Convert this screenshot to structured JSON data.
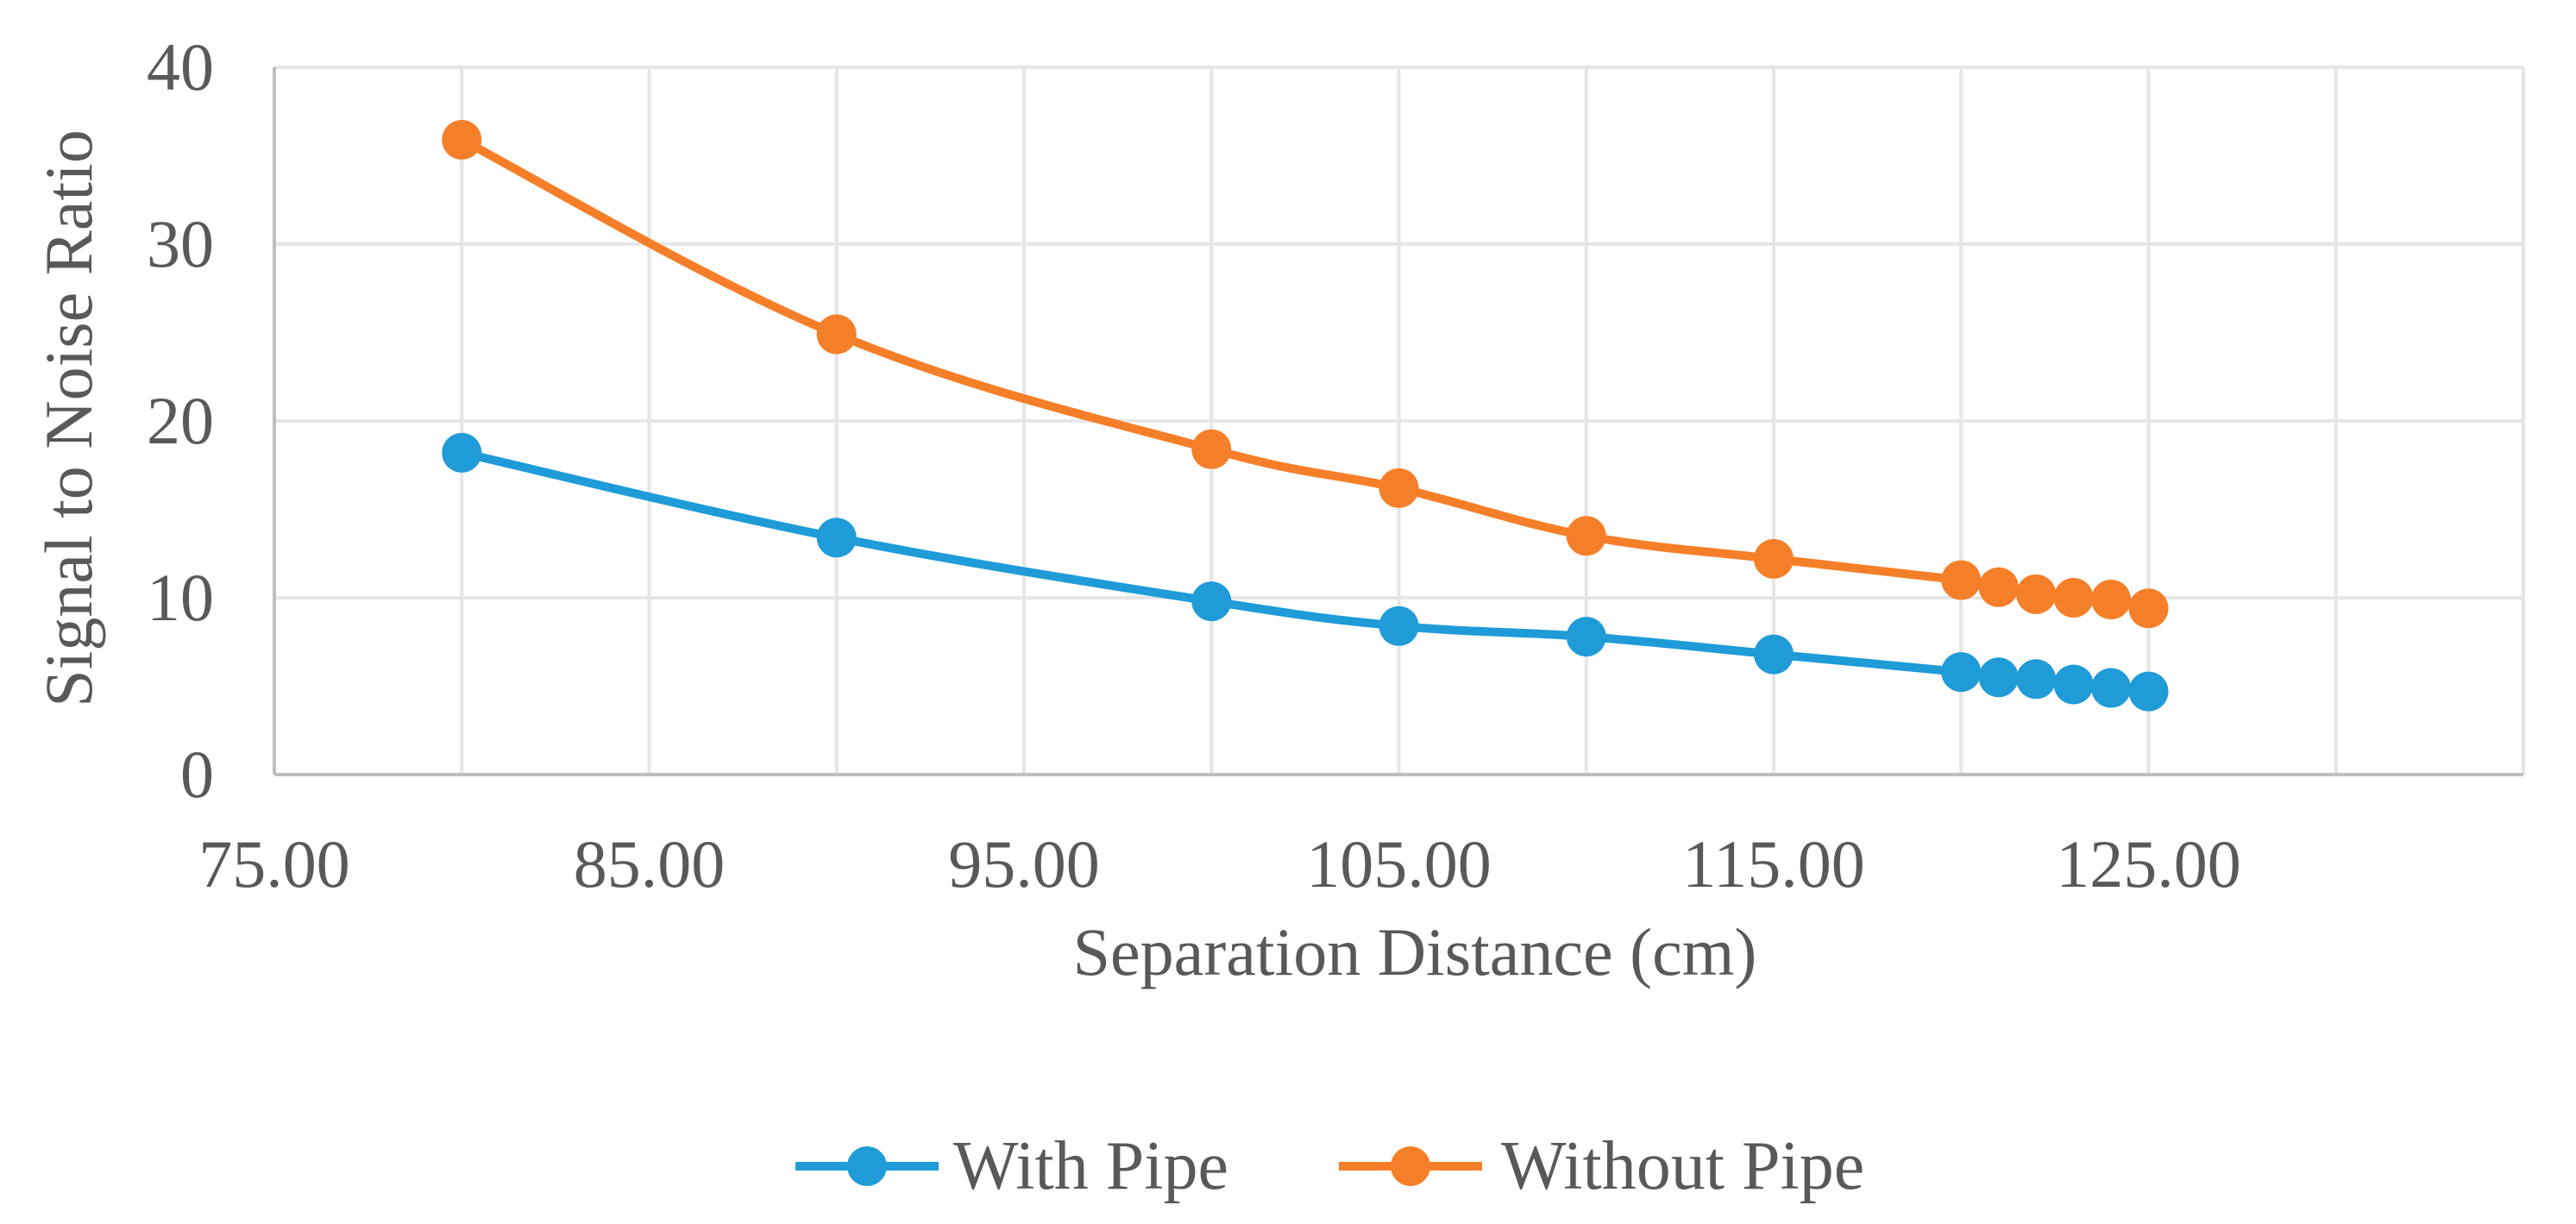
{
  "chart_data": {
    "type": "line",
    "title": "",
    "xlabel": "Separation Distance (cm)",
    "ylabel": "Signal to Noise Ratio",
    "xlim": [
      75,
      135
    ],
    "ylim": [
      0,
      40
    ],
    "x_ticks": [
      75,
      85,
      95,
      105,
      115,
      125
    ],
    "x_tick_labels": [
      "75.00",
      "85.00",
      "95.00",
      "105.00",
      "115.00",
      "125.00"
    ],
    "y_ticks": [
      0,
      10,
      20,
      30,
      40
    ],
    "y_tick_labels": [
      "0",
      "10",
      "20",
      "30",
      "40"
    ],
    "grid": true,
    "legend_position": "bottom",
    "x": [
      80,
      90,
      100,
      105,
      110,
      115,
      120,
      121,
      122,
      123,
      124,
      125
    ],
    "series": [
      {
        "name": "With Pipe",
        "color": "#1f9bd8",
        "values": [
          18.2,
          13.4,
          9.8,
          8.4,
          7.8,
          6.8,
          5.8,
          5.5,
          5.4,
          5.1,
          4.9,
          4.7
        ]
      },
      {
        "name": "Without Pipe",
        "color": "#f57f29",
        "values": [
          35.9,
          24.9,
          18.4,
          16.2,
          13.5,
          12.2,
          11.0,
          10.6,
          10.2,
          10.0,
          9.9,
          9.4
        ]
      }
    ]
  },
  "colors": {
    "grid": "#e6e6e6",
    "axis": "#bfbfbf",
    "text": "#595959"
  }
}
